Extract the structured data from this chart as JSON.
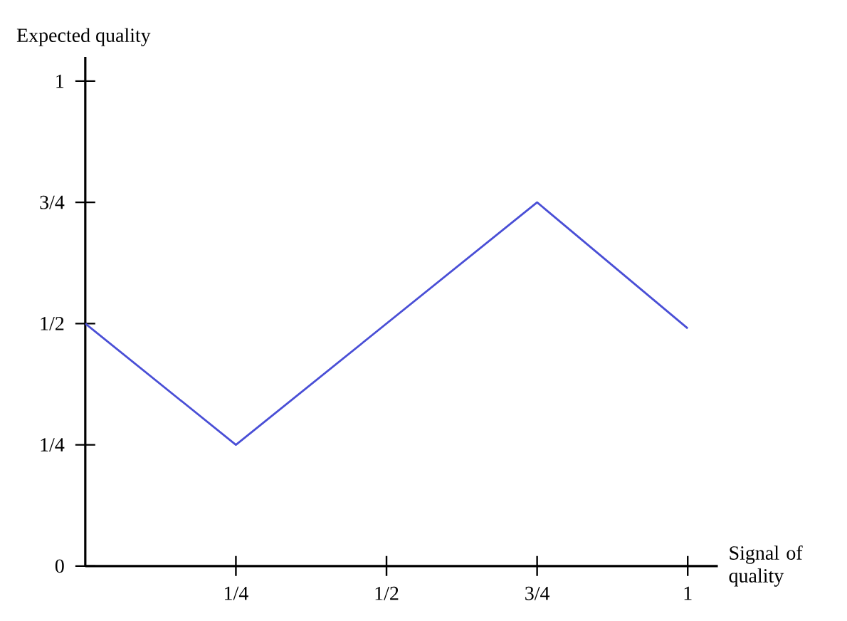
{
  "chart_data": {
    "type": "line",
    "xlabel": "Signal of quality",
    "ylabel": "Expected quality",
    "x": [
      0,
      0.25,
      0.75,
      1
    ],
    "series": [
      {
        "color": "#4a4fd6",
        "values": [
          0.5,
          0.25,
          0.75,
          0.49
        ]
      }
    ],
    "xlim": [
      0,
      1.05
    ],
    "ylim": [
      0,
      1.05
    ],
    "xticks": [
      {
        "value": 0.25,
        "label": "1/4"
      },
      {
        "value": 0.5,
        "label": "1/2"
      },
      {
        "value": 0.75,
        "label": "3/4"
      },
      1
    ],
    "yticks": [
      0,
      {
        "value": 0.25,
        "label": "1/4"
      },
      {
        "value": 0.5,
        "label": "1/2"
      },
      {
        "value": 0.75,
        "label": "3/4"
      },
      1
    ],
    "grid": false,
    "marker": "none",
    "line_style": "solid"
  }
}
